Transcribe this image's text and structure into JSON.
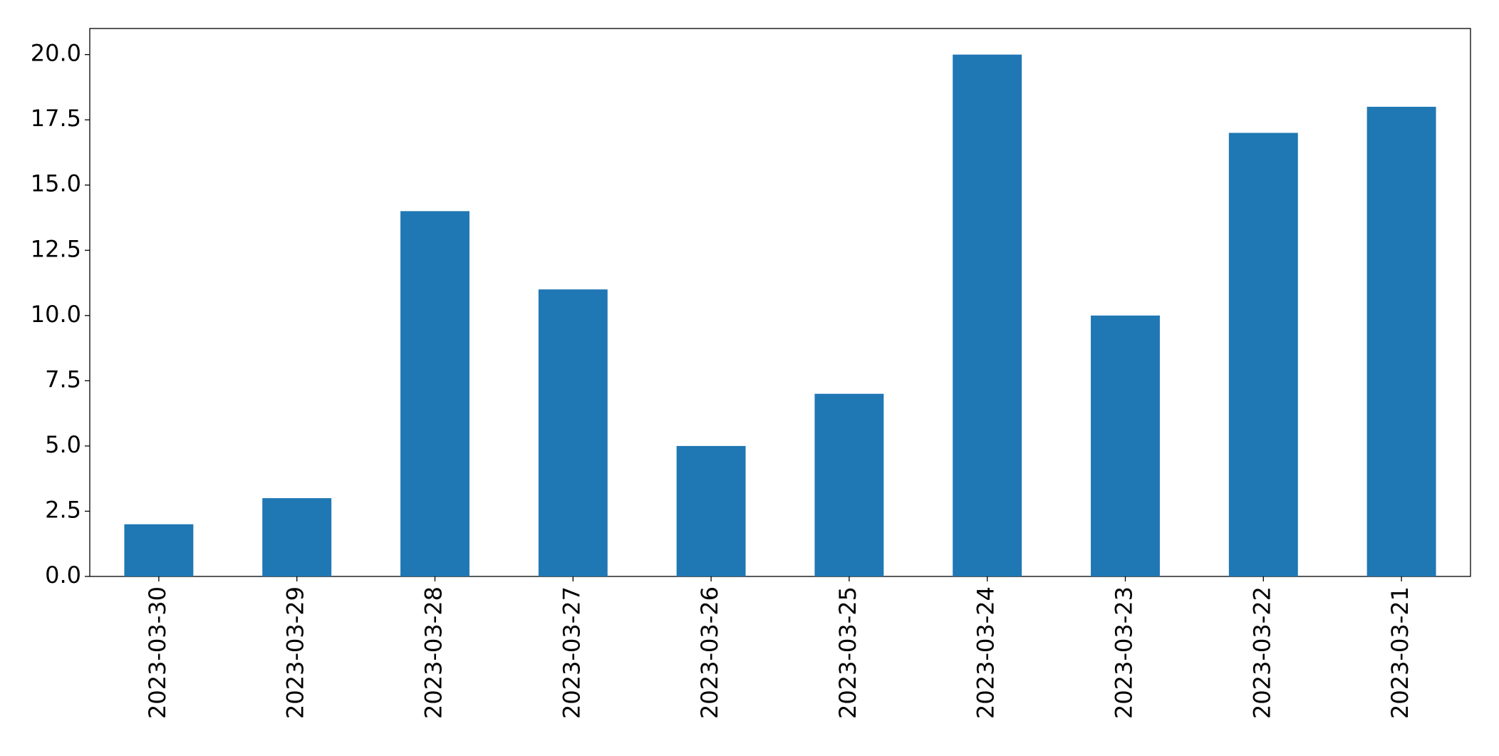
{
  "chart_data": {
    "type": "bar",
    "categories": [
      "2023-03-30",
      "2023-03-29",
      "2023-03-28",
      "2023-03-27",
      "2023-03-26",
      "2023-03-25",
      "2023-03-24",
      "2023-03-23",
      "2023-03-22",
      "2023-03-21"
    ],
    "values": [
      2,
      3,
      14,
      11,
      5,
      7,
      20,
      10,
      17,
      18
    ],
    "color": "#1f77b4",
    "ylim": [
      0,
      21
    ],
    "yticks": [
      {
        "value": 0,
        "label": "0.0"
      },
      2.5,
      {
        "value": 5,
        "label": "5.0"
      },
      7.5,
      {
        "value": 10,
        "label": "10.0"
      },
      12.5,
      {
        "value": 15,
        "label": "15.0"
      },
      17.5,
      {
        "value": 20,
        "label": "20.0"
      }
    ],
    "grid": false
  }
}
